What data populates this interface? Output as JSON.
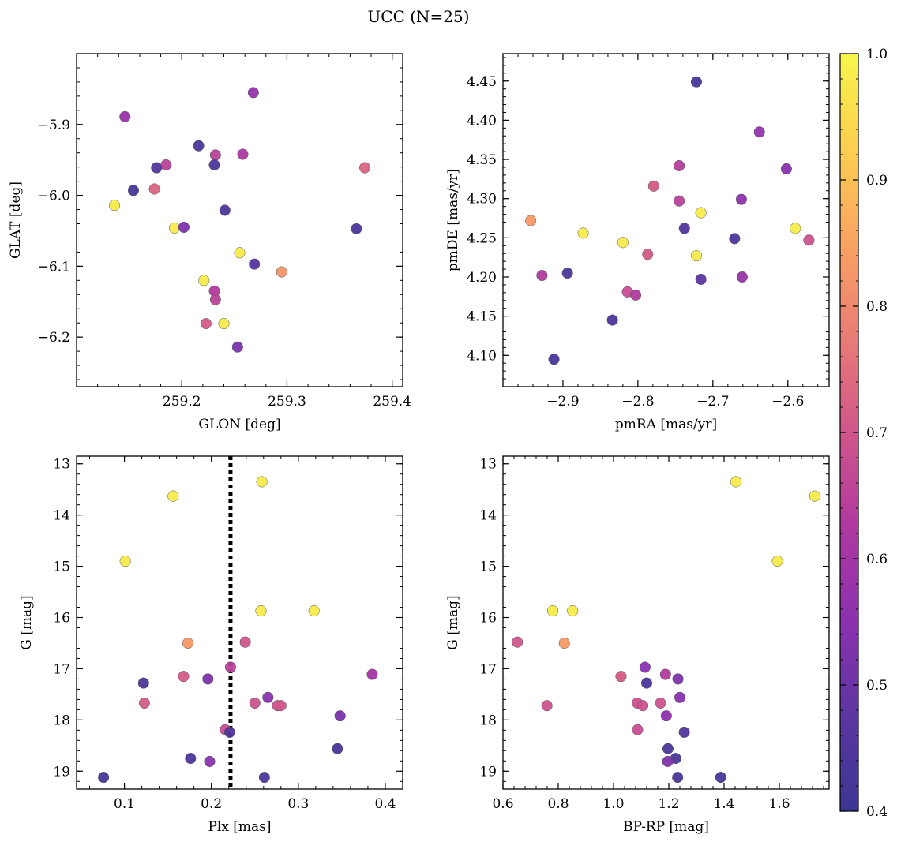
{
  "title": "UCC (N=25)",
  "colorbar": {
    "range": [
      0.4,
      1.0
    ],
    "ticks": [
      0.4,
      0.5,
      0.6,
      0.7,
      0.8,
      0.9,
      1.0
    ],
    "tick_labels": [
      "0.4",
      "0.5",
      "0.6",
      "0.7",
      "0.8",
      "0.9",
      "1.0"
    ],
    "colormap": "plasma"
  },
  "chart_data": [
    {
      "type": "scatter",
      "xlabel": "GLON [deg]",
      "ylabel": "GLAT [deg]",
      "xlim": [
        259.1,
        259.41
      ],
      "ylim": [
        -6.27,
        -5.8
      ],
      "xticks": [
        259.2,
        259.3,
        259.4
      ],
      "xtick_labels": [
        "259.2",
        "259.3",
        "259.4"
      ],
      "yticks": [
        -6.2,
        -6.1,
        -6.0,
        -5.9
      ],
      "ytick_labels": [
        "−6.2",
        "−6.1",
        "−6.0",
        "−5.9"
      ],
      "y_inverted": false,
      "points": [
        {
          "x": 259.268,
          "y": -5.855,
          "c": 0.57
        },
        {
          "x": 259.146,
          "y": -5.889,
          "c": 0.58
        },
        {
          "x": 259.216,
          "y": -5.93,
          "c": 0.44
        },
        {
          "x": 259.232,
          "y": -5.943,
          "c": 0.65
        },
        {
          "x": 259.258,
          "y": -5.942,
          "c": 0.62
        },
        {
          "x": 259.185,
          "y": -5.957,
          "c": 0.65
        },
        {
          "x": 259.176,
          "y": -5.961,
          "c": 0.45
        },
        {
          "x": 259.231,
          "y": -5.957,
          "c": 0.44
        },
        {
          "x": 259.374,
          "y": -5.961,
          "c": 0.73
        },
        {
          "x": 259.174,
          "y": -5.991,
          "c": 0.73
        },
        {
          "x": 259.154,
          "y": -5.993,
          "c": 0.43
        },
        {
          "x": 259.136,
          "y": -6.014,
          "c": 0.98
        },
        {
          "x": 259.241,
          "y": -6.021,
          "c": 0.44
        },
        {
          "x": 259.193,
          "y": -6.046,
          "c": 0.98
        },
        {
          "x": 259.202,
          "y": -6.045,
          "c": 0.53
        },
        {
          "x": 259.366,
          "y": -6.047,
          "c": 0.44
        },
        {
          "x": 259.255,
          "y": -6.081,
          "c": 0.98
        },
        {
          "x": 259.269,
          "y": -6.097,
          "c": 0.46
        },
        {
          "x": 259.295,
          "y": -6.108,
          "c": 0.82
        },
        {
          "x": 259.221,
          "y": -6.12,
          "c": 0.98
        },
        {
          "x": 259.231,
          "y": -6.135,
          "c": 0.63
        },
        {
          "x": 259.232,
          "y": -6.147,
          "c": 0.65
        },
        {
          "x": 259.223,
          "y": -6.181,
          "c": 0.71
        },
        {
          "x": 259.24,
          "y": -6.181,
          "c": 0.98
        },
        {
          "x": 259.253,
          "y": -6.214,
          "c": 0.52
        }
      ]
    },
    {
      "type": "scatter",
      "xlabel": "pmRA [mas/yr]",
      "ylabel": "pmDE [mas/yr]",
      "xlim": [
        -2.98,
        -2.545
      ],
      "ylim": [
        4.06,
        4.485
      ],
      "xticks": [
        -2.9,
        -2.8,
        -2.7,
        -2.6
      ],
      "xtick_labels": [
        "−2.9",
        "−2.8",
        "−2.7",
        "−2.6"
      ],
      "yticks": [
        4.1,
        4.15,
        4.2,
        4.25,
        4.3,
        4.35,
        4.4,
        4.45
      ],
      "ytick_labels": [
        "4.10",
        "4.15",
        "4.20",
        "4.25",
        "4.30",
        "4.35",
        "4.40",
        "4.45"
      ],
      "y_inverted": false,
      "points": [
        {
          "x": -2.722,
          "y": 4.449,
          "c": 0.43
        },
        {
          "x": -2.638,
          "y": 4.385,
          "c": 0.57
        },
        {
          "x": -2.745,
          "y": 4.342,
          "c": 0.64
        },
        {
          "x": -2.602,
          "y": 4.338,
          "c": 0.55
        },
        {
          "x": -2.779,
          "y": 4.316,
          "c": 0.71
        },
        {
          "x": -2.745,
          "y": 4.297,
          "c": 0.65
        },
        {
          "x": -2.662,
          "y": 4.299,
          "c": 0.56
        },
        {
          "x": -2.716,
          "y": 4.282,
          "c": 0.98
        },
        {
          "x": -2.943,
          "y": 4.272,
          "c": 0.83
        },
        {
          "x": -2.59,
          "y": 4.262,
          "c": 0.98
        },
        {
          "x": -2.738,
          "y": 4.262,
          "c": 0.45
        },
        {
          "x": -2.873,
          "y": 4.256,
          "c": 0.98
        },
        {
          "x": -2.671,
          "y": 4.249,
          "c": 0.44
        },
        {
          "x": -2.572,
          "y": 4.247,
          "c": 0.69
        },
        {
          "x": -2.82,
          "y": 4.244,
          "c": 0.98
        },
        {
          "x": -2.787,
          "y": 4.229,
          "c": 0.71
        },
        {
          "x": -2.722,
          "y": 4.227,
          "c": 0.98
        },
        {
          "x": -2.928,
          "y": 4.202,
          "c": 0.63
        },
        {
          "x": -2.894,
          "y": 4.205,
          "c": 0.44
        },
        {
          "x": -2.716,
          "y": 4.197,
          "c": 0.48
        },
        {
          "x": -2.661,
          "y": 4.2,
          "c": 0.58
        },
        {
          "x": -2.814,
          "y": 4.181,
          "c": 0.68
        },
        {
          "x": -2.803,
          "y": 4.177,
          "c": 0.63
        },
        {
          "x": -2.834,
          "y": 4.145,
          "c": 0.44
        },
        {
          "x": -2.912,
          "y": 4.095,
          "c": 0.43
        }
      ]
    },
    {
      "type": "scatter",
      "xlabel": "Plx [mas]",
      "ylabel": "G [mag]",
      "xlim": [
        0.045,
        0.42
      ],
      "ylim": [
        12.85,
        19.35
      ],
      "xticks": [
        0.1,
        0.2,
        0.3,
        0.4
      ],
      "xtick_labels": [
        "0.1",
        "0.2",
        "0.3",
        "0.4"
      ],
      "yticks": [
        13,
        14,
        15,
        16,
        17,
        18,
        19
      ],
      "ytick_labels": [
        "13",
        "14",
        "15",
        "16",
        "17",
        "18",
        "19"
      ],
      "y_inverted": true,
      "vline": 0.222,
      "points": [
        {
          "x": 0.258,
          "y": 13.35,
          "c": 0.98
        },
        {
          "x": 0.156,
          "y": 13.63,
          "c": 0.98
        },
        {
          "x": 0.101,
          "y": 14.9,
          "c": 0.98
        },
        {
          "x": 0.257,
          "y": 15.87,
          "c": 0.98
        },
        {
          "x": 0.318,
          "y": 15.87,
          "c": 0.98
        },
        {
          "x": 0.173,
          "y": 16.5,
          "c": 0.83
        },
        {
          "x": 0.239,
          "y": 16.48,
          "c": 0.7
        },
        {
          "x": 0.222,
          "y": 16.97,
          "c": 0.65
        },
        {
          "x": 0.385,
          "y": 17.11,
          "c": 0.6
        },
        {
          "x": 0.168,
          "y": 17.15,
          "c": 0.71
        },
        {
          "x": 0.196,
          "y": 17.2,
          "c": 0.53
        },
        {
          "x": 0.122,
          "y": 17.28,
          "c": 0.44
        },
        {
          "x": 0.265,
          "y": 17.56,
          "c": 0.55
        },
        {
          "x": 0.123,
          "y": 17.67,
          "c": 0.71
        },
        {
          "x": 0.25,
          "y": 17.67,
          "c": 0.69
        },
        {
          "x": 0.276,
          "y": 17.72,
          "c": 0.69
        },
        {
          "x": 0.28,
          "y": 17.72,
          "c": 0.7
        },
        {
          "x": 0.348,
          "y": 17.92,
          "c": 0.52
        },
        {
          "x": 0.216,
          "y": 18.19,
          "c": 0.68
        },
        {
          "x": 0.221,
          "y": 18.24,
          "c": 0.45
        },
        {
          "x": 0.345,
          "y": 18.56,
          "c": 0.43
        },
        {
          "x": 0.176,
          "y": 18.75,
          "c": 0.44
        },
        {
          "x": 0.198,
          "y": 18.81,
          "c": 0.55
        },
        {
          "x": 0.076,
          "y": 19.12,
          "c": 0.43
        },
        {
          "x": 0.261,
          "y": 19.12,
          "c": 0.44
        }
      ]
    },
    {
      "type": "scatter",
      "xlabel": "BP-RP [mag]",
      "ylabel": "G [mag]",
      "xlim": [
        0.6,
        1.78
      ],
      "ylim": [
        12.85,
        19.35
      ],
      "xticks": [
        0.6,
        0.8,
        1.0,
        1.2,
        1.4,
        1.6
      ],
      "xtick_labels": [
        "0.6",
        "0.8",
        "1.0",
        "1.2",
        "1.4",
        "1.6"
      ],
      "yticks": [
        13,
        14,
        15,
        16,
        17,
        18,
        19
      ],
      "ytick_labels": [
        "13",
        "14",
        "15",
        "16",
        "17",
        "18",
        "19"
      ],
      "y_inverted": true,
      "points": [
        {
          "x": 1.443,
          "y": 13.35,
          "c": 0.98
        },
        {
          "x": 1.728,
          "y": 13.63,
          "c": 0.98
        },
        {
          "x": 1.593,
          "y": 14.9,
          "c": 0.98
        },
        {
          "x": 0.78,
          "y": 15.87,
          "c": 0.98
        },
        {
          "x": 0.852,
          "y": 15.87,
          "c": 0.98
        },
        {
          "x": 0.652,
          "y": 16.48,
          "c": 0.7
        },
        {
          "x": 0.822,
          "y": 16.5,
          "c": 0.83
        },
        {
          "x": 1.114,
          "y": 16.97,
          "c": 0.55
        },
        {
          "x": 1.188,
          "y": 17.11,
          "c": 0.63
        },
        {
          "x": 1.027,
          "y": 17.15,
          "c": 0.71
        },
        {
          "x": 1.233,
          "y": 17.2,
          "c": 0.53
        },
        {
          "x": 1.12,
          "y": 17.28,
          "c": 0.44
        },
        {
          "x": 1.24,
          "y": 17.56,
          "c": 0.55
        },
        {
          "x": 1.086,
          "y": 17.67,
          "c": 0.69
        },
        {
          "x": 1.17,
          "y": 17.67,
          "c": 0.69
        },
        {
          "x": 0.759,
          "y": 17.72,
          "c": 0.69
        },
        {
          "x": 1.106,
          "y": 17.72,
          "c": 0.69
        },
        {
          "x": 1.191,
          "y": 17.92,
          "c": 0.56
        },
        {
          "x": 1.087,
          "y": 18.19,
          "c": 0.68
        },
        {
          "x": 1.256,
          "y": 18.24,
          "c": 0.45
        },
        {
          "x": 1.197,
          "y": 18.56,
          "c": 0.44
        },
        {
          "x": 1.225,
          "y": 18.75,
          "c": 0.44
        },
        {
          "x": 1.196,
          "y": 18.81,
          "c": 0.53
        },
        {
          "x": 1.388,
          "y": 19.12,
          "c": 0.43
        },
        {
          "x": 1.232,
          "y": 19.12,
          "c": 0.44
        }
      ]
    }
  ]
}
